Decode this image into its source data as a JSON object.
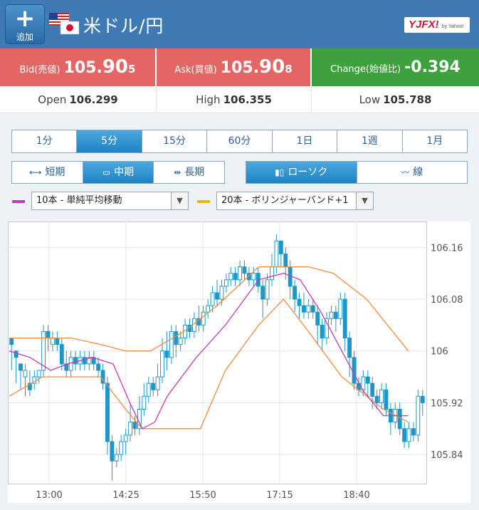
{
  "header": {
    "add_label": "追加",
    "pair": "米ドル/円",
    "logo_text": "YJFX!",
    "logo_sub": "by Yahoo!",
    "bg": "#3f7ab4"
  },
  "quote": {
    "bid_label": "Bid(売値)",
    "bid_main": "105.",
    "bid_pip": "90",
    "bid_last": "5",
    "ask_label": "Ask(買値)",
    "ask_main": "105.",
    "ask_pip": "90",
    "ask_last": "8",
    "change_label": "Change(始値比)",
    "change_value": "-0.394"
  },
  "ohl": {
    "open_label": "Open",
    "open_value": "106.299",
    "high_label": "High",
    "high_value": "106.355",
    "low_label": "Low",
    "low_value": "105.788"
  },
  "timeframes": [
    "1分",
    "5分",
    "15分",
    "60分",
    "1日",
    "1週",
    "1月"
  ],
  "timeframe_selected": "5分",
  "terms": [
    "短期",
    "中期",
    "長期"
  ],
  "term_selected": "中期",
  "chart_types": [
    "ローソク",
    "線"
  ],
  "chart_type_selected": "ローソク",
  "indicators": [
    {
      "label": "10本 - 単純平均移動",
      "color": "#c23ab4"
    },
    {
      "label": "20本 - ボリンジャーバンド+1",
      "color": "#f0a500"
    }
  ],
  "chart_data": {
    "type": "candlestick",
    "y_ticks": [
      "106.16",
      "106.08",
      "106",
      "105.92",
      "105.84"
    ],
    "ylim": [
      105.795,
      106.2
    ],
    "x_ticks": [
      "13:00",
      "14:25",
      "15:50",
      "17:15",
      "18:40"
    ],
    "candle_color": "#1f96c8",
    "sma_color": "#c23ab4",
    "band_color": "#f08a3c",
    "candles": [
      [
        106.02,
        106.01,
        105.97,
        106.02
      ],
      [
        106.0,
        105.99,
        105.95,
        106.0
      ],
      [
        105.98,
        105.97,
        105.94,
        105.98
      ],
      [
        105.96,
        105.97,
        105.93,
        105.98
      ],
      [
        105.95,
        105.94,
        105.93,
        105.97
      ],
      [
        105.95,
        105.96,
        105.94,
        105.97
      ],
      [
        105.96,
        105.97,
        105.95,
        105.97
      ],
      [
        105.97,
        106.03,
        105.96,
        106.04
      ],
      [
        106.03,
        106.02,
        106.0,
        106.04
      ],
      [
        106.01,
        106.02,
        106.0,
        106.03
      ],
      [
        106.02,
        106.01,
        106.0,
        106.03
      ],
      [
        106.01,
        105.98,
        105.97,
        106.02
      ],
      [
        105.98,
        105.97,
        105.96,
        106.0
      ],
      [
        105.97,
        105.99,
        105.96,
        106.0
      ],
      [
        105.99,
        105.98,
        105.97,
        106.0
      ],
      [
        105.98,
        105.99,
        105.97,
        106.0
      ],
      [
        105.99,
        105.98,
        105.97,
        106.0
      ],
      [
        105.98,
        105.99,
        105.97,
        106.0
      ],
      [
        105.99,
        105.98,
        105.97,
        106.0
      ],
      [
        105.98,
        105.97,
        105.96,
        105.99
      ],
      [
        105.97,
        105.95,
        105.94,
        105.98
      ],
      [
        105.95,
        105.86,
        105.84,
        105.96
      ],
      [
        105.86,
        105.83,
        105.8,
        105.87
      ],
      [
        105.83,
        105.84,
        105.82,
        105.85
      ],
      [
        105.84,
        105.86,
        105.83,
        105.87
      ],
      [
        105.86,
        105.87,
        105.84,
        105.88
      ],
      [
        105.87,
        105.89,
        105.86,
        105.92
      ],
      [
        105.89,
        105.88,
        105.87,
        105.9
      ],
      [
        105.88,
        105.91,
        105.87,
        105.93
      ],
      [
        105.91,
        105.93,
        105.9,
        105.95
      ],
      [
        105.93,
        105.95,
        105.92,
        105.96
      ],
      [
        105.95,
        105.94,
        105.93,
        105.96
      ],
      [
        105.94,
        105.96,
        105.93,
        105.98
      ],
      [
        105.96,
        106.0,
        105.95,
        106.02
      ],
      [
        106.0,
        105.99,
        105.97,
        106.03
      ],
      [
        105.99,
        106.03,
        105.98,
        106.04
      ],
      [
        106.03,
        106.01,
        105.99,
        106.04
      ],
      [
        106.01,
        106.02,
        106.0,
        106.03
      ],
      [
        106.02,
        106.04,
        106.01,
        106.05
      ],
      [
        106.04,
        106.03,
        106.02,
        106.05
      ],
      [
        106.03,
        106.05,
        106.02,
        106.06
      ],
      [
        106.05,
        106.04,
        106.03,
        106.07
      ],
      [
        106.04,
        106.06,
        106.03,
        106.07
      ],
      [
        106.06,
        106.07,
        106.05,
        106.08
      ],
      [
        106.07,
        106.09,
        106.06,
        106.1
      ],
      [
        106.09,
        106.08,
        106.07,
        106.11
      ],
      [
        106.08,
        106.1,
        106.07,
        106.11
      ],
      [
        106.1,
        106.11,
        106.09,
        106.12
      ],
      [
        106.11,
        106.12,
        106.1,
        106.13
      ],
      [
        106.12,
        106.11,
        106.1,
        106.13
      ],
      [
        106.11,
        106.13,
        106.1,
        106.14
      ],
      [
        106.13,
        106.12,
        106.11,
        106.14
      ],
      [
        106.12,
        106.11,
        106.1,
        106.13
      ],
      [
        106.11,
        106.12,
        106.1,
        106.13
      ],
      [
        106.12,
        106.1,
        106.09,
        106.13
      ],
      [
        106.1,
        106.08,
        106.05,
        106.11
      ],
      [
        106.08,
        106.11,
        106.07,
        106.12
      ],
      [
        106.11,
        106.13,
        106.1,
        106.15
      ],
      [
        106.13,
        106.17,
        106.12,
        106.18
      ],
      [
        106.17,
        106.15,
        106.13,
        106.17
      ],
      [
        106.15,
        106.13,
        106.11,
        106.16
      ],
      [
        106.13,
        106.1,
        106.08,
        106.14
      ],
      [
        106.1,
        106.08,
        106.06,
        106.11
      ],
      [
        106.08,
        106.07,
        106.05,
        106.09
      ],
      [
        106.07,
        106.06,
        106.05,
        106.09
      ],
      [
        106.06,
        106.07,
        106.05,
        106.08
      ],
      [
        106.07,
        106.06,
        106.05,
        106.08
      ],
      [
        106.06,
        106.04,
        106.01,
        106.07
      ],
      [
        106.04,
        106.02,
        106.0,
        106.05
      ],
      [
        106.02,
        106.05,
        106.01,
        106.06
      ],
      [
        106.05,
        106.06,
        106.04,
        106.07
      ],
      [
        106.06,
        106.05,
        106.03,
        106.07
      ],
      [
        106.05,
        106.08,
        106.04,
        106.09
      ],
      [
        106.08,
        106.02,
        106.0,
        106.09
      ],
      [
        106.02,
        105.99,
        105.96,
        106.03
      ],
      [
        105.99,
        105.95,
        105.94,
        106.0
      ],
      [
        105.95,
        105.94,
        105.93,
        105.96
      ],
      [
        105.94,
        105.96,
        105.93,
        105.97
      ],
      [
        105.96,
        105.95,
        105.93,
        105.97
      ],
      [
        105.95,
        105.93,
        105.91,
        105.96
      ],
      [
        105.93,
        105.92,
        105.91,
        105.94
      ],
      [
        105.92,
        105.94,
        105.91,
        105.95
      ],
      [
        105.94,
        105.91,
        105.9,
        105.95
      ],
      [
        105.91,
        105.89,
        105.87,
        105.92
      ],
      [
        105.89,
        105.91,
        105.88,
        105.92
      ],
      [
        105.91,
        105.88,
        105.87,
        105.92
      ],
      [
        105.88,
        105.86,
        105.85,
        105.89
      ],
      [
        105.86,
        105.88,
        105.85,
        105.89
      ],
      [
        105.88,
        105.87,
        105.86,
        105.89
      ],
      [
        105.87,
        105.93,
        105.86,
        105.94
      ],
      [
        105.93,
        105.92,
        105.9,
        105.94
      ]
    ],
    "sma": [
      [
        0,
        106.0
      ],
      [
        0.05,
        105.99
      ],
      [
        0.1,
        105.97
      ],
      [
        0.14,
        105.98
      ],
      [
        0.2,
        105.99
      ],
      [
        0.25,
        105.98
      ],
      [
        0.29,
        105.92
      ],
      [
        0.32,
        105.88
      ],
      [
        0.35,
        105.89
      ],
      [
        0.38,
        105.93
      ],
      [
        0.45,
        105.99
      ],
      [
        0.52,
        106.04
      ],
      [
        0.6,
        106.11
      ],
      [
        0.66,
        106.12
      ],
      [
        0.7,
        106.11
      ],
      [
        0.75,
        106.06
      ],
      [
        0.8,
        106.0
      ],
      [
        0.85,
        105.94
      ],
      [
        0.9,
        105.9
      ],
      [
        0.96,
        105.9
      ]
    ],
    "upper_band": [
      [
        0,
        106.02
      ],
      [
        0.15,
        106.02
      ],
      [
        0.22,
        106.01
      ],
      [
        0.28,
        106.0
      ],
      [
        0.34,
        106.0
      ],
      [
        0.42,
        106.03
      ],
      [
        0.5,
        106.07
      ],
      [
        0.6,
        106.13
      ],
      [
        0.66,
        106.13
      ],
      [
        0.72,
        106.13
      ],
      [
        0.78,
        106.12
      ],
      [
        0.86,
        106.08
      ],
      [
        0.96,
        106.0
      ]
    ],
    "lower_band": [
      [
        0,
        105.93
      ],
      [
        0.08,
        105.96
      ],
      [
        0.15,
        105.96
      ],
      [
        0.22,
        105.96
      ],
      [
        0.28,
        105.91
      ],
      [
        0.32,
        105.88
      ],
      [
        0.4,
        105.88
      ],
      [
        0.46,
        105.88
      ],
      [
        0.52,
        105.97
      ],
      [
        0.6,
        106.04
      ],
      [
        0.66,
        106.08
      ],
      [
        0.72,
        106.03
      ],
      [
        0.8,
        105.96
      ],
      [
        0.9,
        105.91
      ],
      [
        0.96,
        105.89
      ]
    ]
  }
}
